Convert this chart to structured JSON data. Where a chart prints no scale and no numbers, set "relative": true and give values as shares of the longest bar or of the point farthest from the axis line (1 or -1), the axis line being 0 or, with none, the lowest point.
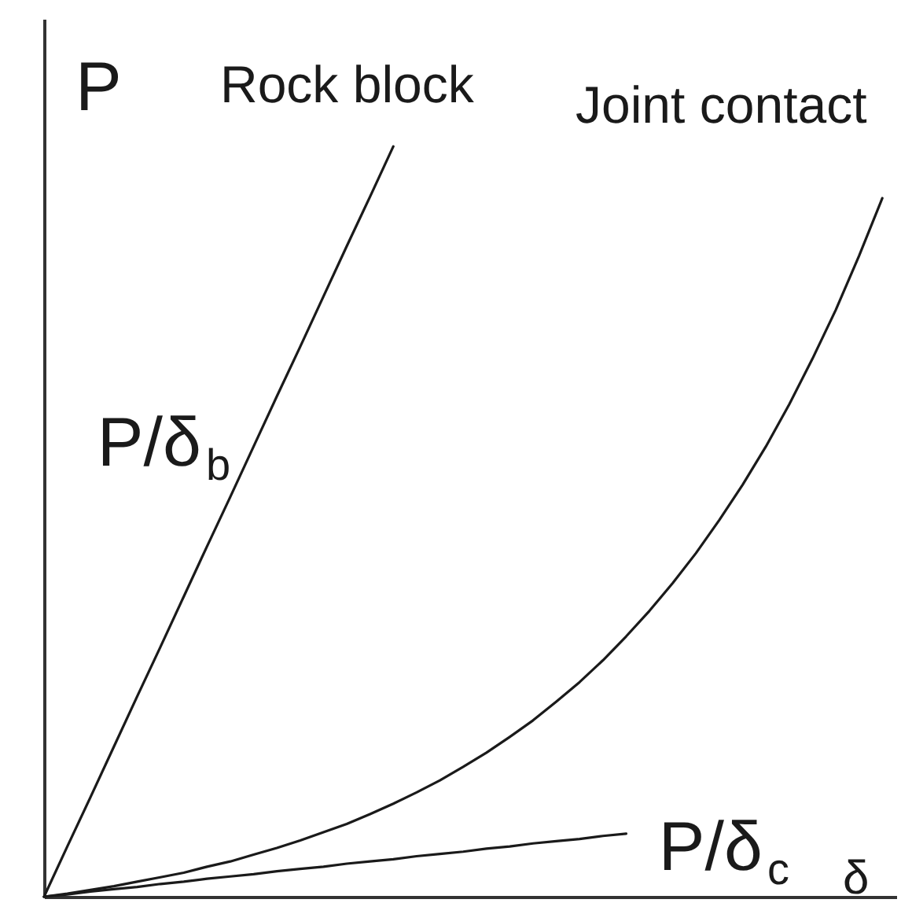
{
  "chart_data": {
    "type": "line",
    "relative": true,
    "xlabel": "δ",
    "ylabel": "P",
    "categories": [
      null,
      null,
      null,
      null,
      null,
      null,
      null,
      null,
      null,
      null,
      null,
      null,
      null,
      null,
      null,
      null,
      null,
      null,
      null,
      null,
      null,
      null,
      null,
      null,
      null,
      null,
      null,
      null,
      null,
      null,
      null,
      null,
      null,
      null,
      null,
      null,
      null
    ],
    "series": [
      {
        "name": "Rock block",
        "color": "#1a1a1a",
        "values": [
          0,
          0.067,
          0.133,
          0.2,
          0.267,
          0.333,
          0.4,
          0.467,
          0.533,
          0.6,
          0.667,
          0.733,
          0.8,
          0.867,
          0.933,
          1,
          null,
          null,
          null,
          null,
          null,
          null,
          null,
          null,
          null,
          null,
          null,
          null,
          null,
          null,
          null,
          null,
          null,
          null,
          null,
          null,
          null
        ]
      },
      {
        "name": "Joint contact",
        "color": "#1a1a1a",
        "values": [
          0,
          0.004,
          0.009,
          0.014,
          0.02,
          0.026,
          0.032,
          0.04,
          0.047,
          0.056,
          0.065,
          0.075,
          0.086,
          0.097,
          0.11,
          0.124,
          0.139,
          0.155,
          0.173,
          0.192,
          0.213,
          0.235,
          0.26,
          0.286,
          0.315,
          0.347,
          0.381,
          0.418,
          0.458,
          0.502,
          0.549,
          0.6,
          0.656,
          0.717,
          0.782,
          0.854,
          0.931
        ]
      },
      {
        "color": "#1a1a1a",
        "values": [
          0,
          0.003,
          0.007,
          0.01,
          0.013,
          0.017,
          0.02,
          0.024,
          0.027,
          0.03,
          0.034,
          0.037,
          0.04,
          0.044,
          0.047,
          0.05,
          0.054,
          0.057,
          0.06,
          0.064,
          0.067,
          0.071,
          0.074,
          0.077,
          0.081,
          0.084,
          null,
          null,
          null,
          null,
          null,
          null,
          null,
          null,
          null,
          null,
          null
        ]
      }
    ],
    "annotations": [
      "P/δ$_{b}$",
      "P/δ$_{c}$"
    ]
  }
}
